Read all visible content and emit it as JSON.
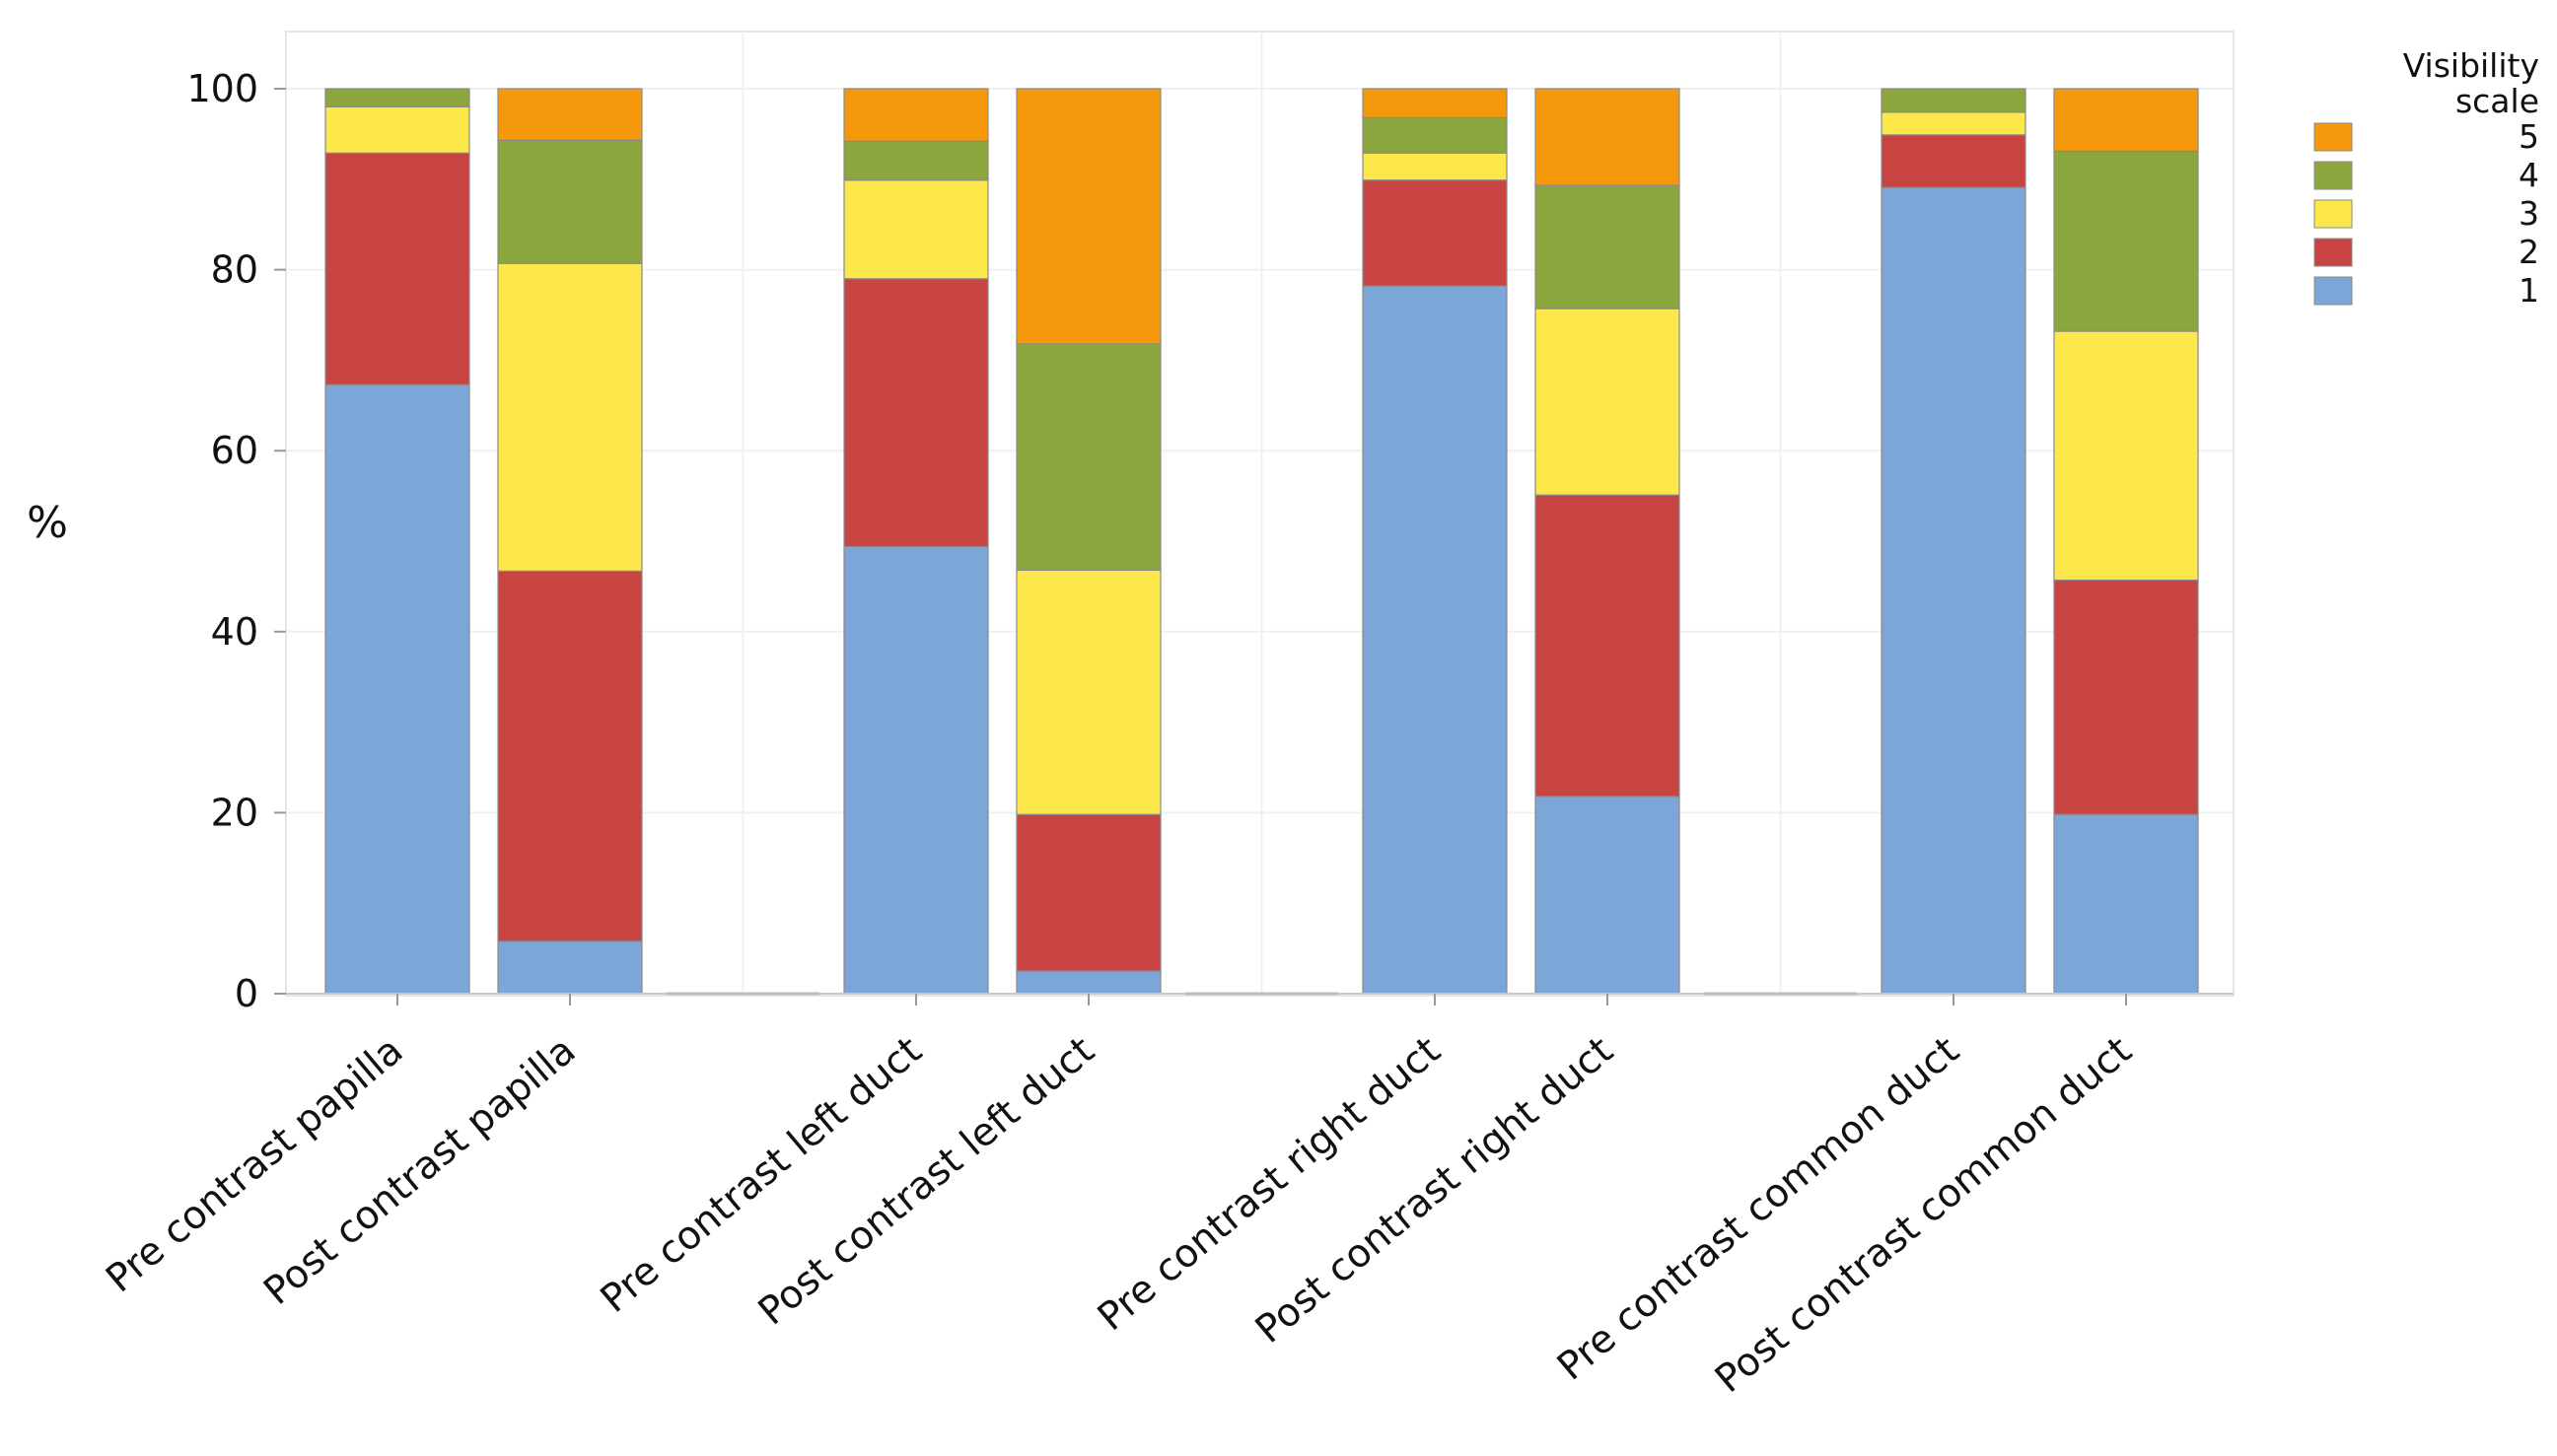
{
  "chart_data": {
    "type": "bar",
    "stacked": true,
    "title": "",
    "xlabel": "",
    "ylabel": "%",
    "ylim": [
      0,
      100
    ],
    "yticks": [
      0,
      20,
      40,
      60,
      80,
      100
    ],
    "grid": true,
    "categories": [
      "Pre contrast papilla",
      "Post contrast papilla",
      "Pre contrast left duct",
      "Post contrast left duct",
      "Pre contrast right duct",
      "Post contrast right duct",
      "Pre contrast common duct",
      "Post contrast common duct"
    ],
    "series": [
      {
        "name": "1",
        "color": "#7CA6D8",
        "values": [
          67.3,
          5.8,
          49.4,
          2.5,
          78.2,
          21.8,
          89.1,
          19.8
        ]
      },
      {
        "name": "2",
        "color": "#C84443",
        "values": [
          25.6,
          40.9,
          29.6,
          17.3,
          11.7,
          33.3,
          5.8,
          25.9
        ]
      },
      {
        "name": "3",
        "color": "#FDE84B",
        "values": [
          5.1,
          34.0,
          10.9,
          27.0,
          3.0,
          20.6,
          2.5,
          27.5
        ]
      },
      {
        "name": "4",
        "color": "#8BA63D",
        "values": [
          2.0,
          13.6,
          4.3,
          25.0,
          3.9,
          13.6,
          2.6,
          19.9
        ]
      },
      {
        "name": "5",
        "color": "#F5980B",
        "values": [
          0.0,
          5.7,
          5.8,
          28.2,
          3.2,
          10.7,
          0.0,
          6.9
        ]
      }
    ],
    "legend": {
      "title_line1": "Visibility",
      "title_line2": "scale",
      "order": [
        "5",
        "4",
        "3",
        "2",
        "1"
      ],
      "position": "top-right"
    }
  }
}
